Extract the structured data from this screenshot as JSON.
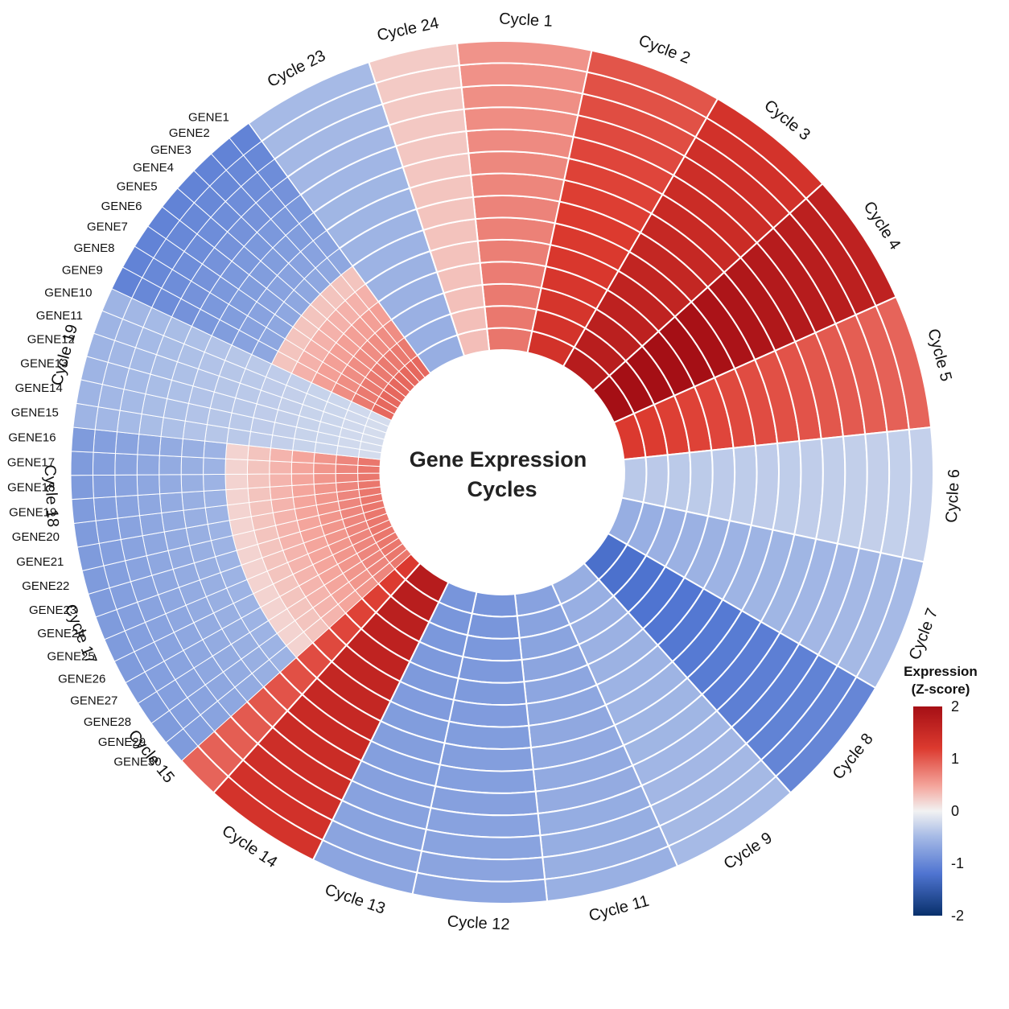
{
  "chart_data": {
    "type": "heatmap",
    "layout": "circular",
    "title": [
      "Gene Expression",
      "Cycles"
    ],
    "cycles": [
      "Cycle 1",
      "Cycle 2",
      "Cycle 3",
      "Cycle 4",
      "Cycle 5",
      "Cycle 6",
      "Cycle 7",
      "Cycle 8",
      "Cycle 9",
      "Cycle 11",
      "Cycle 12",
      "Cycle 13",
      "Cycle 14",
      "Cycle 15",
      "Cycle 17",
      "Cycle 18",
      "Cycle 19",
      "Cycle 23",
      "Cycle 24"
    ],
    "cycle_values": [
      0.6,
      1.0,
      1.3,
      1.6,
      0.9,
      -0.3,
      -0.5,
      -1.0,
      -0.5,
      -0.6,
      -0.7,
      -0.7,
      1.3,
      0.9,
      0.6,
      -0.5,
      0.5,
      -0.5,
      0.25
    ],
    "genes": [
      "GENE1",
      "GENE2",
      "GENE3",
      "GENE4",
      "GENE5",
      "GENE6",
      "GENE7",
      "GENE8",
      "GENE9",
      "GENE10",
      "GENE11",
      "GENE12",
      "GENE13",
      "GENE14",
      "GENE15",
      "GENE16",
      "GENE17",
      "GENE18",
      "GENE19",
      "GENE20",
      "GENE21",
      "GENE22",
      "GENE23",
      "GENE24",
      "GENE25",
      "GENE26",
      "GENE27",
      "GENE28",
      "GENE29",
      "GENE30"
    ],
    "legend": {
      "title": [
        "Expression",
        "(Z-score)"
      ],
      "ticks": [
        2,
        1,
        0,
        -1,
        -2
      ],
      "range": [
        -2,
        2
      ],
      "colormap": "coolwarm",
      "position": "right"
    },
    "colors": {
      "low": "#08306b",
      "mid": "#f2f2f2",
      "high": "#a50f15"
    }
  }
}
